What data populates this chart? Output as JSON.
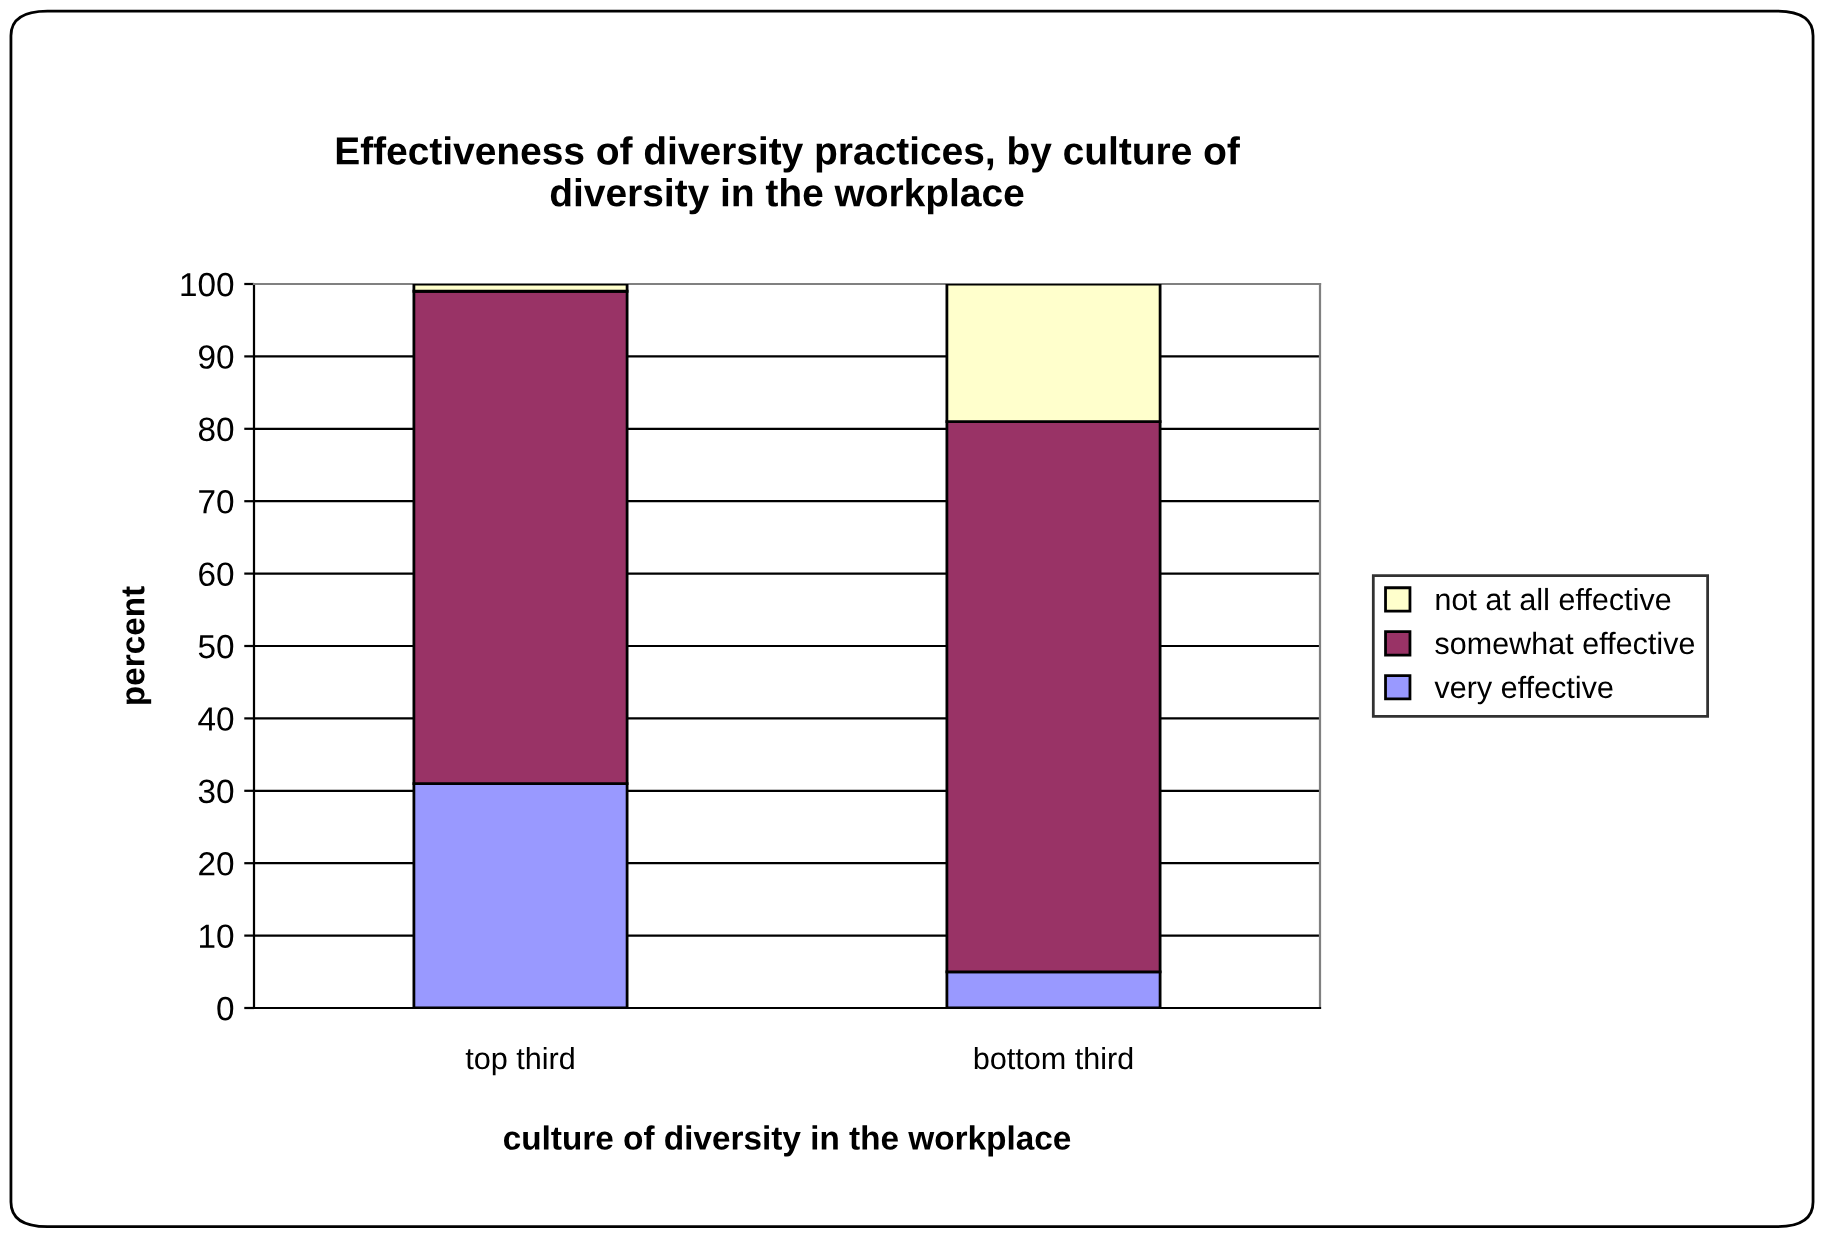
{
  "chart_data": {
    "type": "bar",
    "stacked": true,
    "title": "Effectiveness of diversity practices, by culture of\ndiversity in the workplace",
    "xlabel": "culture of diversity in the workplace",
    "ylabel": "percent",
    "categories": [
      "top third",
      "bottom third"
    ],
    "series": [
      {
        "name": "very effective",
        "color": "#9999ff",
        "values": [
          31,
          5
        ]
      },
      {
        "name": "somewhat effective",
        "color": "#993366",
        "values": [
          68,
          76
        ]
      },
      {
        "name": "not at all effective",
        "color": "#ffffcc",
        "values": [
          1,
          19
        ]
      }
    ],
    "ylim": [
      0,
      100
    ],
    "yticks": [
      0,
      10,
      20,
      30,
      40,
      50,
      60,
      70,
      80,
      90,
      100
    ],
    "grid": "y",
    "legend": "right"
  }
}
